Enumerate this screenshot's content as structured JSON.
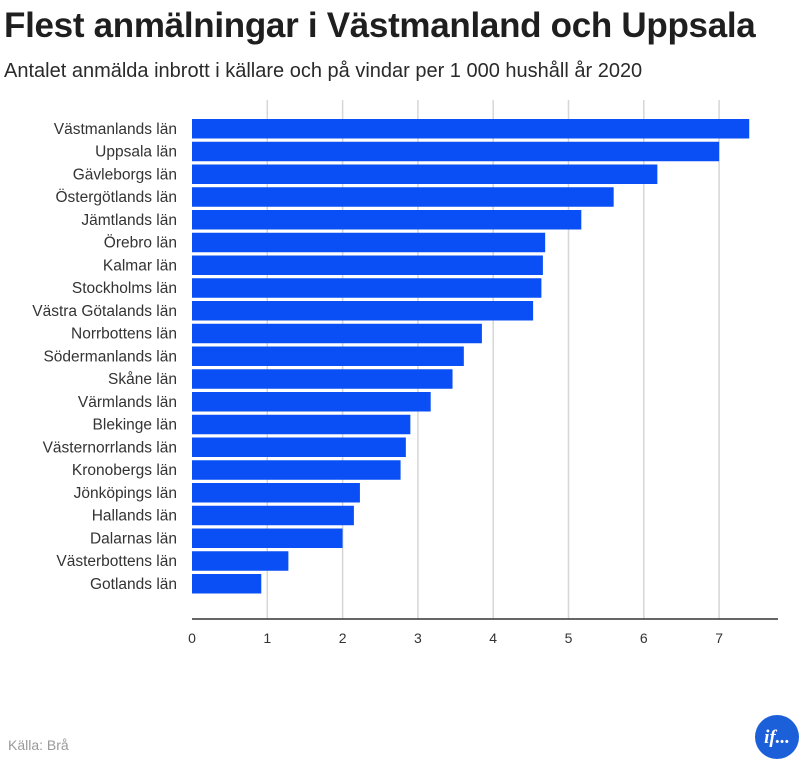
{
  "header": {
    "title": "Flest anmälningar i Västmanland och Uppsala",
    "subtitle": "Antalet anmälda inbrott i källare och på vindar per 1 000 hushåll år 2020"
  },
  "footer": {
    "source": "Källa: Brå",
    "logo_text": "if..."
  },
  "colors": {
    "bar": "#0a4ff5",
    "grid": "#d6d6d6",
    "axis": "#333333",
    "logo": "#1b5fd9"
  },
  "chart_data": {
    "type": "bar",
    "orientation": "horizontal",
    "title": "Flest anmälningar i Västmanland och Uppsala",
    "subtitle": "Antalet anmälda inbrott i källare och på vindar per 1 000 hushåll år 2020",
    "categories": [
      "Västmanlands län",
      "Uppsala län",
      "Gävleborgs län",
      "Östergötlands län",
      "Jämtlands län",
      "Örebro län",
      "Kalmar län",
      "Stockholms län",
      "Västra Götalands län",
      "Norrbottens län",
      "Södermanlands län",
      "Skåne län",
      "Värmlands län",
      "Blekinge län",
      "Västernorrlands län",
      "Kronobergs län",
      "Jönköpings län",
      "Hallands län",
      "Dalarnas län",
      "Västerbottens län",
      "Gotlands län"
    ],
    "values": [
      7.4,
      7.0,
      6.18,
      5.6,
      5.17,
      4.69,
      4.66,
      4.64,
      4.53,
      3.85,
      3.61,
      3.46,
      3.17,
      2.9,
      2.84,
      2.77,
      2.23,
      2.15,
      2.0,
      1.28,
      0.92
    ],
    "xticks": [
      "0",
      "1",
      "2",
      "3",
      "4",
      "5",
      "6",
      "7"
    ],
    "xlim": [
      0,
      7.75
    ],
    "grid": true,
    "legend": "none",
    "xlabel": "",
    "ylabel": ""
  }
}
